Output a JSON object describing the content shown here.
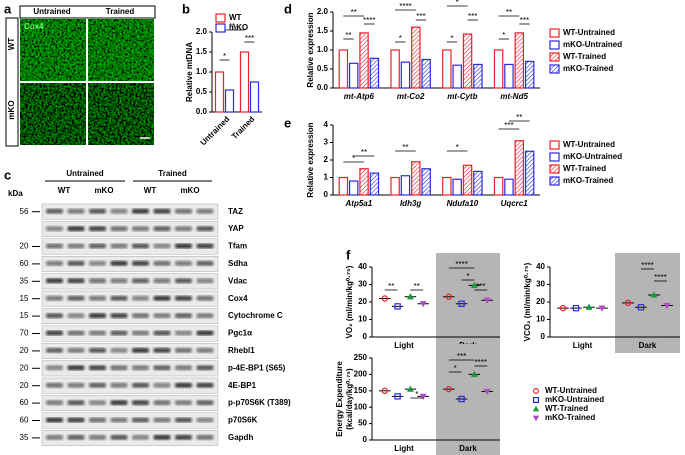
{
  "panel_labels": [
    "a",
    "b",
    "c",
    "d",
    "e",
    "f"
  ],
  "panel_a": {
    "columns": [
      "Untrained",
      "Trained"
    ],
    "rows": [
      "WT",
      "mKO"
    ],
    "stain": "Cox4"
  },
  "panel_c": {
    "groups": [
      "Untrained",
      "Trained"
    ],
    "lanes": [
      "WT",
      "mKO",
      "WT",
      "mKO"
    ],
    "unit": "kDa",
    "proteins": [
      "TAZ",
      "YAP",
      "Tfam",
      "Sdha",
      "Vdac",
      "Cox4",
      "Cytochrome C",
      "Pgc1α",
      "Rhebl1",
      "p-4E-BP1 (S65)",
      "4E-BP1",
      "p-p70S6K (T389)",
      "p70S6K",
      "Gapdh"
    ],
    "kda": [
      56,
      null,
      20,
      60,
      35,
      15,
      15,
      70,
      20,
      20,
      20,
      60,
      60,
      35
    ]
  },
  "chart_data": [
    {
      "type": "bar",
      "ylabel": [
        "Relative mtDNA"
      ],
      "categories": [
        "Untrained",
        "Trained"
      ],
      "series": [
        {
          "name": "WT",
          "color": "#e8212a",
          "values": [
            1.0,
            1.5
          ]
        },
        {
          "name": "mKO",
          "color": "#2a2ae0",
          "values": [
            0.55,
            0.75
          ]
        }
      ],
      "ylim": [
        0,
        2
      ],
      "yticks": [
        {
          "value": 0,
          "label": "0.0"
        },
        {
          "value": 0.5,
          "label": "0.5"
        },
        {
          "value": 1,
          "label": "1.0"
        },
        {
          "value": 1.5,
          "label": "1.5"
        },
        {
          "value": 2,
          "label": "2.0"
        }
      ],
      "annotations": [
        "*",
        "**",
        "***"
      ]
    },
    {
      "type": "bar",
      "ylabel": [
        "Relative expression"
      ],
      "categories": [
        "mt-Atp6",
        "mt-Co2",
        "mt-Cytb",
        "mt-Nd5"
      ],
      "series": [
        {
          "name": "WT-Untrained",
          "color": "#e8212a",
          "hatch": false,
          "values": [
            1.0,
            1.0,
            1.0,
            1.0
          ]
        },
        {
          "name": "mKO-Untrained",
          "color": "#2a2ae0",
          "hatch": false,
          "values": [
            0.65,
            0.68,
            0.6,
            0.62
          ]
        },
        {
          "name": "WT-Trained",
          "color": "#e8212a",
          "hatch": true,
          "values": [
            1.45,
            1.6,
            1.42,
            1.45
          ]
        },
        {
          "name": "mKO-Trained",
          "color": "#2a2ae0",
          "hatch": true,
          "values": [
            0.78,
            0.75,
            0.62,
            0.7
          ]
        }
      ],
      "ylim": [
        0,
        2
      ],
      "yticks": [
        {
          "value": 0,
          "label": "0.0"
        },
        {
          "value": 0.5,
          "label": "0.5"
        },
        {
          "value": 1,
          "label": "1.0"
        },
        {
          "value": 1.5,
          "label": "1.5"
        },
        {
          "value": 2,
          "label": "2.0"
        }
      ],
      "annotations": [
        "**",
        "**",
        "****",
        "*",
        "****",
        "***",
        "*",
        "*",
        "***",
        "*",
        "**",
        "***"
      ]
    },
    {
      "type": "bar",
      "ylabel": [
        "Relative expression"
      ],
      "categories": [
        "Atp5a1",
        "Idh3g",
        "Ndufa10",
        "Uqcrc1"
      ],
      "series": [
        {
          "name": "WT-Untrained",
          "color": "#e8212a",
          "hatch": false,
          "values": [
            1.0,
            1.0,
            1.0,
            1.0
          ]
        },
        {
          "name": "mKO-Untrained",
          "color": "#2a2ae0",
          "hatch": false,
          "values": [
            0.8,
            1.1,
            0.9,
            0.9
          ]
        },
        {
          "name": "WT-Trained",
          "color": "#e8212a",
          "hatch": true,
          "values": [
            1.5,
            1.9,
            1.7,
            3.1
          ]
        },
        {
          "name": "mKO-Trained",
          "color": "#2a2ae0",
          "hatch": true,
          "values": [
            1.25,
            1.5,
            1.35,
            2.5
          ]
        }
      ],
      "ylim": [
        0,
        4
      ],
      "yticks": [
        0,
        1,
        2,
        3,
        4
      ],
      "annotations": [
        "*",
        "**",
        "**",
        "*",
        "***",
        "**"
      ]
    },
    {
      "type": "dot",
      "ylabel": [
        "VO₂ (ml/min/kg⁰·⁷⁵)"
      ],
      "categories": [
        "Light",
        "Dark"
      ],
      "shade_color": "#b5b5b5",
      "series": [
        {
          "name": "WT-Untrained",
          "color": "#e8212a",
          "marker": "circle",
          "values": [
            22,
            23
          ]
        },
        {
          "name": "mKO-Untrained",
          "color": "#2a2ae0",
          "marker": "square",
          "values": [
            17.5,
            19
          ]
        },
        {
          "name": "WT-Trained",
          "color": "#1a9a3a",
          "marker": "triangle",
          "values": [
            23,
            29.5
          ]
        },
        {
          "name": "mKO-Trained",
          "color": "#b24bc8",
          "marker": "triangle-down",
          "values": [
            19,
            21
          ]
        }
      ],
      "ylim": [
        0,
        40
      ],
      "yticks": [
        0,
        10,
        20,
        30,
        40
      ],
      "annotations": [
        "**",
        "**",
        "****",
        "*",
        "***"
      ]
    },
    {
      "type": "dot",
      "ylabel": [
        "VCO₂ (ml/min/kg⁰·⁷⁵)"
      ],
      "categories": [
        "Light",
        "Dark"
      ],
      "shade_color": "#b5b5b5",
      "series": [
        {
          "color": "#e8212a",
          "marker": "circle",
          "values": [
            16.5,
            19.5
          ]
        },
        {
          "color": "#2a2ae0",
          "marker": "square",
          "values": [
            16.5,
            17
          ]
        },
        {
          "color": "#1a9a3a",
          "marker": "triangle",
          "values": [
            17,
            24
          ]
        },
        {
          "color": "#b24bc8",
          "marker": "triangle-down",
          "values": [
            16.5,
            18
          ]
        }
      ],
      "ylim": [
        0,
        40
      ],
      "yticks": [
        0,
        10,
        20,
        30,
        40
      ],
      "annotations": [
        "****",
        "****"
      ]
    },
    {
      "type": "dot",
      "ylabel": [
        "Energy Expenditure",
        "(kcal/day/kg⁰·⁷⁵)"
      ],
      "categories": [
        "Light",
        "Dark"
      ],
      "shade_color": "#b5b5b5",
      "series": [
        {
          "color": "#e8212a",
          "marker": "circle",
          "values": [
            150,
            155
          ]
        },
        {
          "color": "#2a2ae0",
          "marker": "square",
          "values": [
            133,
            125
          ]
        },
        {
          "color": "#1a9a3a",
          "marker": "triangle",
          "values": [
            155,
            200
          ]
        },
        {
          "color": "#b24bc8",
          "marker": "triangle-down",
          "values": [
            133,
            148
          ]
        }
      ],
      "ylim": [
        0,
        250
      ],
      "yticks": [
        0,
        50,
        100,
        150,
        200,
        250
      ],
      "annotations": [
        "*",
        "***",
        "*",
        "****"
      ]
    }
  ]
}
